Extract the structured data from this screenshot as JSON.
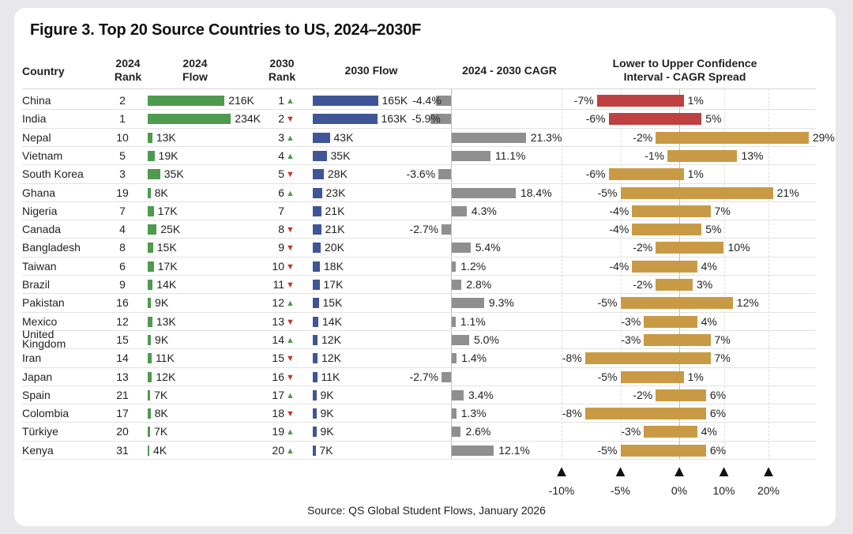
{
  "title": "Figure 3. Top 20 Source Countries to US, 2024–2030F",
  "source": "Source: QS Global Student Flows, January 2026",
  "headers": {
    "country": "Country",
    "rank2024": "2024 Rank",
    "flow2024": "2024 Flow",
    "rank2030": "2030 Rank",
    "flow2030": "2030 Flow",
    "cagr": "2024 - 2030 CAGR",
    "ci": "Lower to Upper Confidence Interval - CAGR Spread"
  },
  "colors": {
    "flow2024": "#4e9a4e",
    "flow2030": "#3f5597",
    "cagr": "#8f8f8f",
    "ci_negative": "#bf4040",
    "ci_positive": "#c99a45",
    "up": "#4e9a4e",
    "down": "#c0392b"
  },
  "chart_data": {
    "type": "table",
    "columns": [
      "Country",
      "2024 Rank",
      "2024 Flow",
      "2030 Rank",
      "2030 Flow",
      "2024 - 2030 CAGR",
      "Lower to Upper Confidence Interval - CAGR Spread"
    ],
    "ci_axis_ticks": [
      "-10%",
      "-5%",
      "0%",
      "10%",
      "20%"
    ],
    "rows": [
      {
        "country": "China",
        "rank2024": "2",
        "flow2024": 216,
        "flow2024_label": "216K",
        "rank2030": "1",
        "change": "up",
        "flow2030": 165,
        "flow2030_label": "165K",
        "cagr": -4.4,
        "cagr_label": "-4.4%",
        "ci_low": -7,
        "ci_high": 1,
        "ci_low_label": "-7%",
        "ci_high_label": "1%",
        "ci_color": "negative"
      },
      {
        "country": "India",
        "rank2024": "1",
        "flow2024": 234,
        "flow2024_label": "234K",
        "rank2030": "2",
        "change": "down",
        "flow2030": 163,
        "flow2030_label": "163K",
        "cagr": -5.9,
        "cagr_label": "-5.9%",
        "ci_low": -6,
        "ci_high": 5,
        "ci_low_label": "-6%",
        "ci_high_label": "5%",
        "ci_color": "negative"
      },
      {
        "country": "Nepal",
        "rank2024": "10",
        "flow2024": 13,
        "flow2024_label": "13K",
        "rank2030": "3",
        "change": "up",
        "flow2030": 43,
        "flow2030_label": "43K",
        "cagr": 21.3,
        "cagr_label": "21.3%",
        "ci_low": -2,
        "ci_high": 29,
        "ci_low_label": "-2%",
        "ci_high_label": "29%",
        "ci_color": "positive"
      },
      {
        "country": "Vietnam",
        "rank2024": "5",
        "flow2024": 19,
        "flow2024_label": "19K",
        "rank2030": "4",
        "change": "up",
        "flow2030": 35,
        "flow2030_label": "35K",
        "cagr": 11.1,
        "cagr_label": "11.1%",
        "ci_low": -1,
        "ci_high": 13,
        "ci_low_label": "-1%",
        "ci_high_label": "13%",
        "ci_color": "positive"
      },
      {
        "country": "South Korea",
        "rank2024": "3",
        "flow2024": 35,
        "flow2024_label": "35K",
        "rank2030": "5",
        "change": "down",
        "flow2030": 28,
        "flow2030_label": "28K",
        "cagr": -3.6,
        "cagr_label": "-3.6%",
        "ci_low": -6,
        "ci_high": 1,
        "ci_low_label": "-6%",
        "ci_high_label": "1%",
        "ci_color": "positive"
      },
      {
        "country": "Ghana",
        "rank2024": "19",
        "flow2024": 8,
        "flow2024_label": "8K",
        "rank2030": "6",
        "change": "up",
        "flow2030": 23,
        "flow2030_label": "23K",
        "cagr": 18.4,
        "cagr_label": "18.4%",
        "ci_low": -5,
        "ci_high": 21,
        "ci_low_label": "-5%",
        "ci_high_label": "21%",
        "ci_color": "positive"
      },
      {
        "country": "Nigeria",
        "rank2024": "7",
        "flow2024": 17,
        "flow2024_label": "17K",
        "rank2030": "7",
        "change": "none",
        "flow2030": 21,
        "flow2030_label": "21K",
        "cagr": 4.3,
        "cagr_label": "4.3%",
        "ci_low": -4,
        "ci_high": 7,
        "ci_low_label": "-4%",
        "ci_high_label": "7%",
        "ci_color": "positive"
      },
      {
        "country": "Canada",
        "rank2024": "4",
        "flow2024": 25,
        "flow2024_label": "25K",
        "rank2030": "8",
        "change": "down",
        "flow2030": 21,
        "flow2030_label": "21K",
        "cagr": -2.7,
        "cagr_label": "-2.7%",
        "ci_low": -4,
        "ci_high": 5,
        "ci_low_label": "-4%",
        "ci_high_label": "5%",
        "ci_color": "positive"
      },
      {
        "country": "Bangladesh",
        "rank2024": "8",
        "flow2024": 15,
        "flow2024_label": "15K",
        "rank2030": "9",
        "change": "down",
        "flow2030": 20,
        "flow2030_label": "20K",
        "cagr": 5.4,
        "cagr_label": "5.4%",
        "ci_low": -2,
        "ci_high": 10,
        "ci_low_label": "-2%",
        "ci_high_label": "10%",
        "ci_color": "positive"
      },
      {
        "country": "Taiwan",
        "rank2024": "6",
        "flow2024": 17,
        "flow2024_label": "17K",
        "rank2030": "10",
        "change": "down",
        "flow2030": 18,
        "flow2030_label": "18K",
        "cagr": 1.2,
        "cagr_label": "1.2%",
        "ci_low": -4,
        "ci_high": 4,
        "ci_low_label": "-4%",
        "ci_high_label": "4%",
        "ci_color": "positive"
      },
      {
        "country": "Brazil",
        "rank2024": "9",
        "flow2024": 14,
        "flow2024_label": "14K",
        "rank2030": "11",
        "change": "down",
        "flow2030": 17,
        "flow2030_label": "17K",
        "cagr": 2.8,
        "cagr_label": "2.8%",
        "ci_low": -2,
        "ci_high": 3,
        "ci_low_label": "-2%",
        "ci_high_label": "3%",
        "ci_color": "positive"
      },
      {
        "country": "Pakistan",
        "rank2024": "16",
        "flow2024": 9,
        "flow2024_label": "9K",
        "rank2030": "12",
        "change": "up",
        "flow2030": 15,
        "flow2030_label": "15K",
        "cagr": 9.3,
        "cagr_label": "9.3%",
        "ci_low": -5,
        "ci_high": 12,
        "ci_low_label": "-5%",
        "ci_high_label": "12%",
        "ci_color": "positive"
      },
      {
        "country": "Mexico",
        "rank2024": "12",
        "flow2024": 13,
        "flow2024_label": "13K",
        "rank2030": "13",
        "change": "down",
        "flow2030": 14,
        "flow2030_label": "14K",
        "cagr": 1.1,
        "cagr_label": "1.1%",
        "ci_low": -3,
        "ci_high": 4,
        "ci_low_label": "-3%",
        "ci_high_label": "4%",
        "ci_color": "positive"
      },
      {
        "country": "United Kingdom",
        "rank2024": "15",
        "flow2024": 9,
        "flow2024_label": "9K",
        "rank2030": "14",
        "change": "up",
        "flow2030": 12,
        "flow2030_label": "12K",
        "cagr": 5.0,
        "cagr_label": "5.0%",
        "ci_low": -3,
        "ci_high": 7,
        "ci_low_label": "-3%",
        "ci_high_label": "7%",
        "ci_color": "positive"
      },
      {
        "country": "Iran",
        "rank2024": "14",
        "flow2024": 11,
        "flow2024_label": "11K",
        "rank2030": "15",
        "change": "down",
        "flow2030": 12,
        "flow2030_label": "12K",
        "cagr": 1.4,
        "cagr_label": "1.4%",
        "ci_low": -8,
        "ci_high": 7,
        "ci_low_label": "-8%",
        "ci_high_label": "7%",
        "ci_color": "positive"
      },
      {
        "country": "Japan",
        "rank2024": "13",
        "flow2024": 12,
        "flow2024_label": "12K",
        "rank2030": "16",
        "change": "down",
        "flow2030": 11,
        "flow2030_label": "11K",
        "cagr": -2.7,
        "cagr_label": "-2.7%",
        "ci_low": -5,
        "ci_high": 1,
        "ci_low_label": "-5%",
        "ci_high_label": "1%",
        "ci_color": "positive"
      },
      {
        "country": "Spain",
        "rank2024": "21",
        "flow2024": 7,
        "flow2024_label": "7K",
        "rank2030": "17",
        "change": "up",
        "flow2030": 9,
        "flow2030_label": "9K",
        "cagr": 3.4,
        "cagr_label": "3.4%",
        "ci_low": -2,
        "ci_high": 6,
        "ci_low_label": "-2%",
        "ci_high_label": "6%",
        "ci_color": "positive"
      },
      {
        "country": "Colombia",
        "rank2024": "17",
        "flow2024": 8,
        "flow2024_label": "8K",
        "rank2030": "18",
        "change": "down",
        "flow2030": 9,
        "flow2030_label": "9K",
        "cagr": 1.3,
        "cagr_label": "1.3%",
        "ci_low": -8,
        "ci_high": 6,
        "ci_low_label": "-8%",
        "ci_high_label": "6%",
        "ci_color": "positive"
      },
      {
        "country": "Türkiye",
        "rank2024": "20",
        "flow2024": 7,
        "flow2024_label": "7K",
        "rank2030": "19",
        "change": "up",
        "flow2030": 9,
        "flow2030_label": "9K",
        "cagr": 2.6,
        "cagr_label": "2.6%",
        "ci_low": -3,
        "ci_high": 4,
        "ci_low_label": "-3%",
        "ci_high_label": "4%",
        "ci_color": "positive"
      },
      {
        "country": "Kenya",
        "rank2024": "31",
        "flow2024": 4,
        "flow2024_label": "4K",
        "rank2030": "20",
        "change": "up",
        "flow2030": 7,
        "flow2030_label": "7K",
        "cagr": 12.1,
        "cagr_label": "12.1%",
        "ci_low": -5,
        "ci_high": 6,
        "ci_low_label": "-5%",
        "ci_high_label": "6%",
        "ci_color": "positive"
      }
    ]
  }
}
